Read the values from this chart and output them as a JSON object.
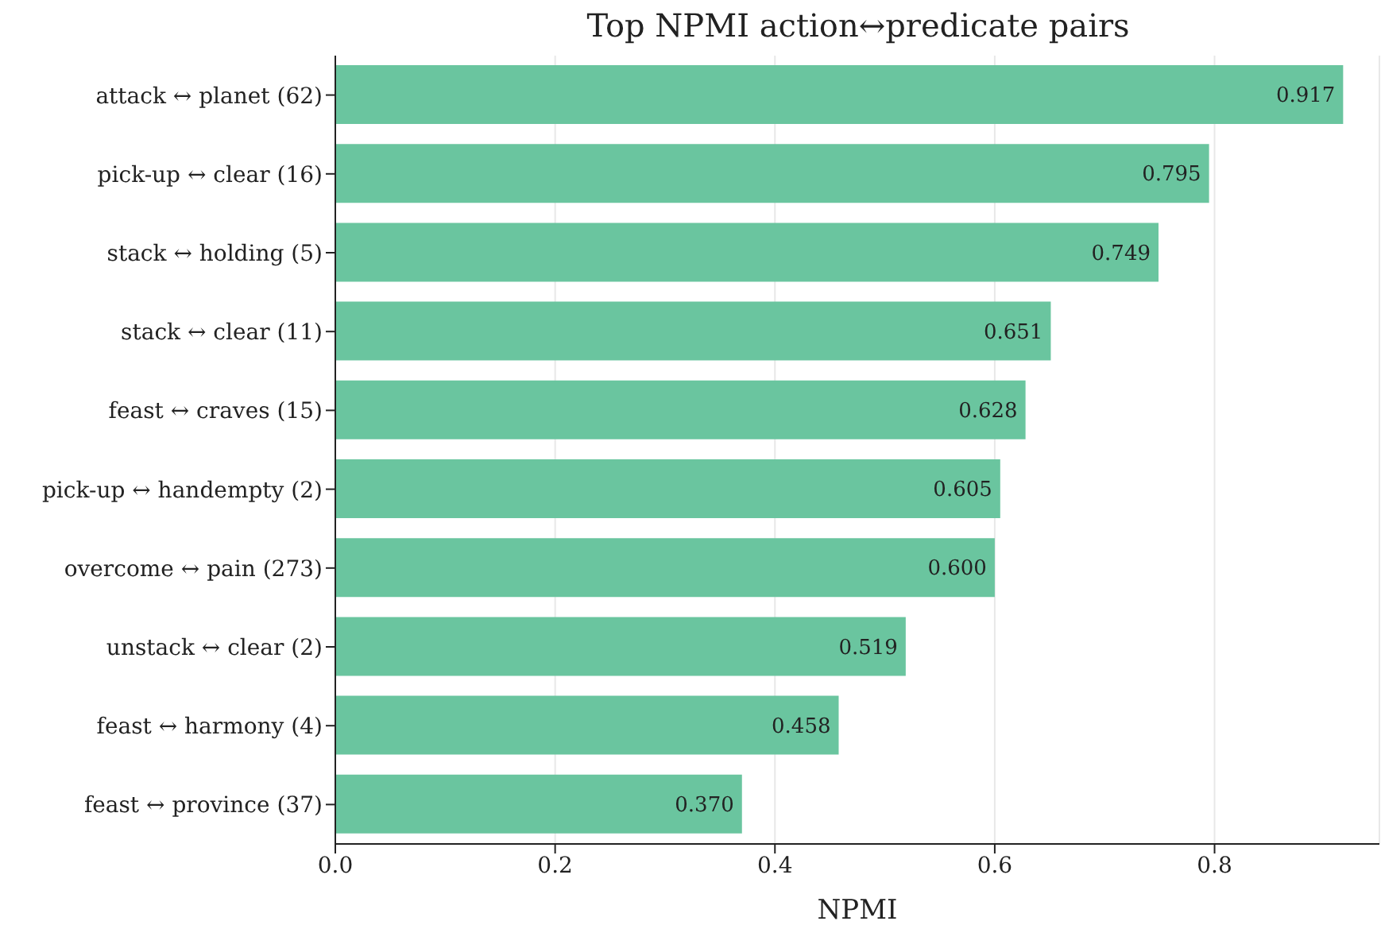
{
  "chart_data": {
    "type": "bar",
    "orientation": "horizontal",
    "title": "Top NPMI action↔predicate pairs",
    "xlabel": "NPMI",
    "categories": [
      "attack ↔ planet (62)",
      "pick-up ↔ clear (16)",
      "stack ↔ holding (5)",
      "stack ↔ clear (11)",
      "feast ↔ craves (15)",
      "pick-up ↔ handempty (2)",
      "overcome ↔ pain (273)",
      "unstack ↔ clear (2)",
      "feast ↔ harmony (4)",
      "feast ↔ province (37)"
    ],
    "values": [
      0.917,
      0.795,
      0.749,
      0.651,
      0.628,
      0.605,
      0.6,
      0.519,
      0.458,
      0.37
    ],
    "color": "#6ac59f",
    "xlim": [
      0,
      0.95
    ],
    "xticks": [
      {
        "value": 0,
        "label": "0.0"
      },
      {
        "value": 0.2,
        "label": "0.2"
      },
      {
        "value": 0.4,
        "label": "0.4"
      },
      {
        "value": 0.6,
        "label": "0.6"
      },
      {
        "value": 0.8,
        "label": "0.8"
      }
    ],
    "value_labels": [
      "0.917",
      "0.795",
      "0.749",
      "0.651",
      "0.628",
      "0.605",
      "0.600",
      "0.519",
      "0.458",
      "0.370"
    ],
    "grid": "x"
  }
}
